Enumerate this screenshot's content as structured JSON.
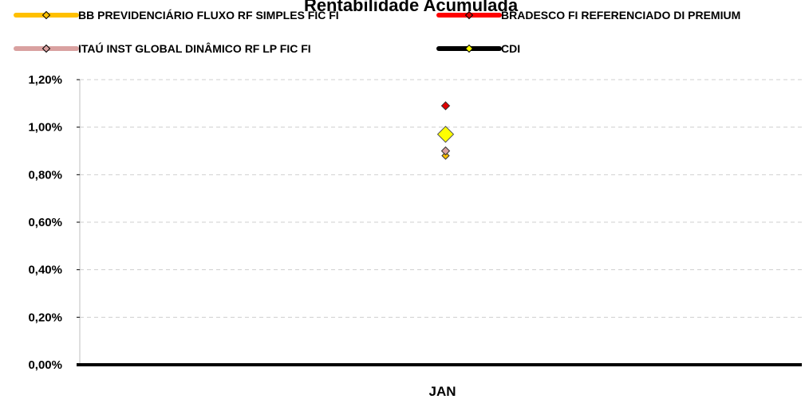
{
  "chart_data": {
    "type": "scatter",
    "title": "Rentabilidade Acumulada",
    "categories": [
      "JAN"
    ],
    "ylim": [
      0,
      1.2
    ],
    "yticks": [
      0,
      0.2,
      0.4,
      0.6,
      0.8,
      1.0,
      1.2
    ],
    "ytick_labels": [
      "0,00%",
      "0,20%",
      "0,40%",
      "0,60%",
      "0,80%",
      "1,00%",
      "1,20%"
    ],
    "y_unit": "%",
    "grid": true,
    "legend_position": "top",
    "series": [
      {
        "name": "BB PREVIDENCIÁRIO FLUXO RF SIMPLES FIC FI",
        "values": [
          0.88
        ],
        "line_color": "#FFC000",
        "marker_color": "#FFC000",
        "marker": "diamond"
      },
      {
        "name": "BRADESCO FI REFERENCIADO DI PREMIUM",
        "values": [
          1.09
        ],
        "line_color": "#FF0000",
        "marker_color": "#E00000",
        "marker": "diamond"
      },
      {
        "name": "ITAÚ INST GLOBAL DINÂMICO RF LP FIC FI",
        "values": [
          0.9
        ],
        "line_color": "#D9A1A0",
        "marker_color": "#D9A1A0",
        "marker": "diamond"
      },
      {
        "name": "CDI",
        "values": [
          0.97
        ],
        "line_color": "#000000",
        "marker_color": "#FFFF00",
        "marker": "diamond"
      }
    ]
  }
}
